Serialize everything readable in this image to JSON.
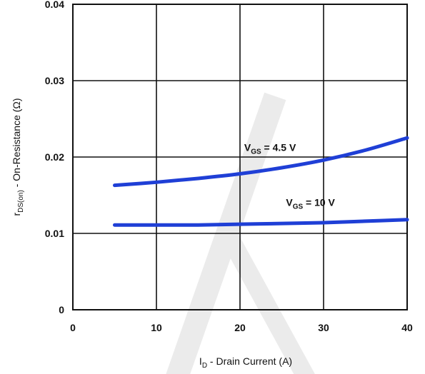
{
  "chart_data": {
    "type": "line",
    "xlabel": {
      "main": "I",
      "sub": "D",
      "rest": " - Drain Current (A)"
    },
    "ylabel": {
      "main": "r",
      "sub": "DS(on)",
      "rest": " - On-Resistance (Ω)"
    },
    "xlim": [
      0,
      40
    ],
    "ylim": [
      0,
      0.04
    ],
    "x_ticks": [
      "0",
      "10",
      "20",
      "30",
      "40"
    ],
    "y_ticks": [
      "0",
      "0.01",
      "0.02",
      "0.03",
      "0.04"
    ],
    "grid": true,
    "series": [
      {
        "name": "VGS = 4.5 V",
        "label": {
          "main": "V",
          "sub": "GS",
          "rest": " = 4.5 V"
        },
        "label_at": {
          "x": 20.5,
          "y": 0.0208
        },
        "color": "#1f3fd6",
        "x": [
          5,
          10,
          15,
          20,
          25,
          30,
          35,
          40
        ],
        "y": [
          0.0163,
          0.0167,
          0.0172,
          0.0178,
          0.0186,
          0.0196,
          0.0209,
          0.0225
        ]
      },
      {
        "name": "VGS = 10 V",
        "label": {
          "main": "V",
          "sub": "GS",
          "rest": " = 10 V"
        },
        "label_at": {
          "x": 25.5,
          "y": 0.0136
        },
        "color": "#1f3fd6",
        "x": [
          5,
          10,
          15,
          20,
          25,
          30,
          35,
          40
        ],
        "y": [
          0.0111,
          0.0111,
          0.0111,
          0.0112,
          0.0113,
          0.0114,
          0.0116,
          0.0118
        ]
      }
    ]
  }
}
